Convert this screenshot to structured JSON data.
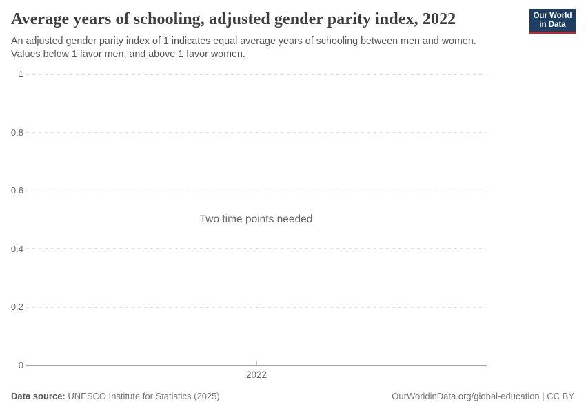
{
  "header": {
    "title": "Average years of schooling, adjusted gender parity index, 2022",
    "subtitle": "An adjusted gender parity index of 1 indicates equal average years of schooling between men and women. Values below 1 favor men, and above 1 favor women.",
    "logo": {
      "line1": "Our World",
      "line2": "in Data",
      "bg_color": "#1d3d63",
      "stripe_color": "#c0262c"
    }
  },
  "chart_data": {
    "type": "line",
    "title": "Average years of schooling, adjusted gender parity index, 2022",
    "series": [],
    "empty_message": "Two time points needed",
    "x_tick_labels": [
      "2022"
    ],
    "y_ticks": [
      0,
      0.2,
      0.4,
      0.6,
      0.8,
      1
    ],
    "ylim": [
      0,
      1
    ],
    "xlabel": "",
    "ylabel": "",
    "grid": "horizontal-dashed",
    "legend": "none"
  },
  "footer": {
    "source_label": "Data source:",
    "source_value": "UNESCO Institute for Statistics (2025)",
    "rights": "OurWorldinData.org/global-education | CC BY"
  },
  "colors": {
    "title": "#3d3d3d",
    "subtitle": "#565656",
    "axis_label": "#666666",
    "gridline": "#dedede",
    "axis_line": "#a7a7a7",
    "empty_message": "#666666",
    "footer_text": "#777777",
    "logo_bg": "#1d3d63",
    "logo_stripe": "#c0262c"
  }
}
